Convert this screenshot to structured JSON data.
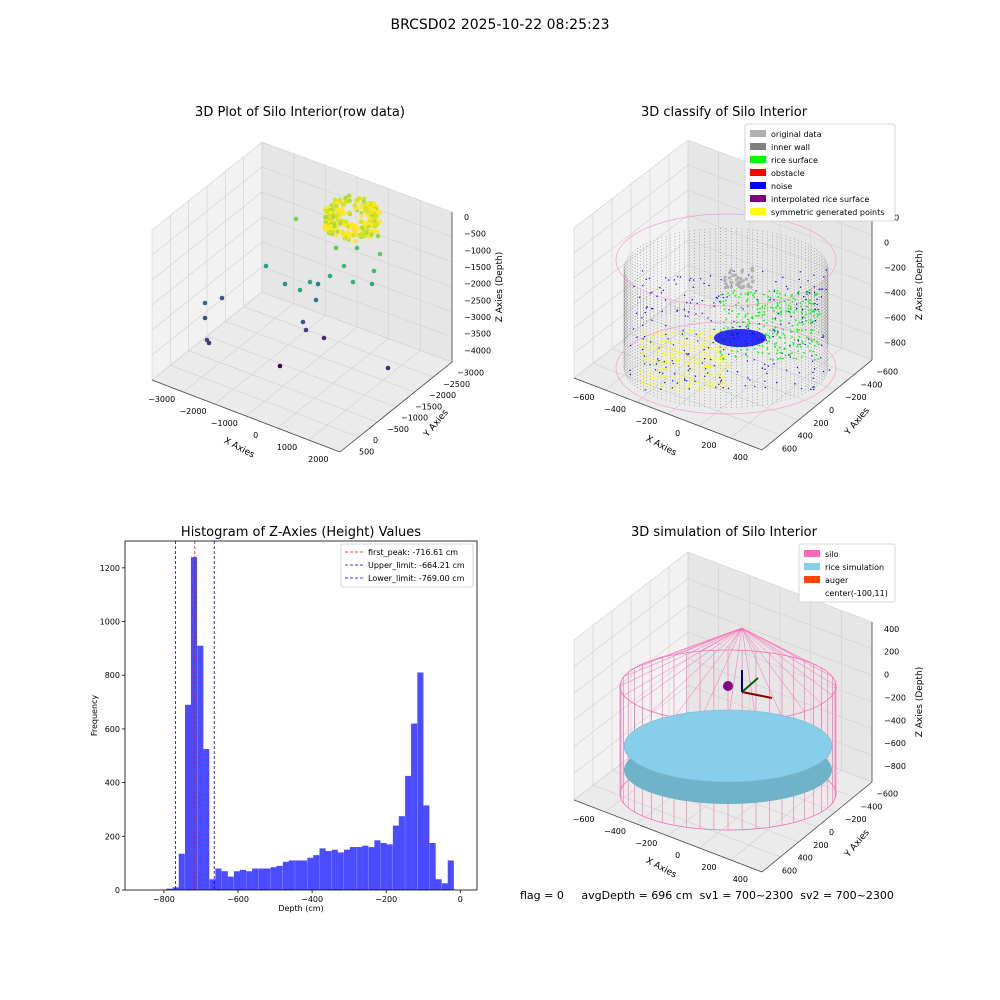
{
  "suptitle": "BRCSD02 2025-10-22 08:25:23",
  "footer": {
    "flag": "flag = 0",
    "avg_depth": "avgDepth = 696 cm",
    "sv1": "sv1 = 700~2300",
    "sv2": "sv2 = 700~2300"
  },
  "colors": {
    "hist_bar": "#4b4bff",
    "first_peak": "#ff0000",
    "limit_lines": "#0000cc",
    "silo": "#ff69b4",
    "rice_simulation": "#87ceeb",
    "auger": "#ff4500",
    "original_data": "#b0b0b0",
    "inner_wall": "#808080",
    "rice_surface": "#00ff00",
    "obstacle": "#ff0000",
    "noise": "#0000ff",
    "interpolated_rice_surface": "#800080",
    "symmetric_generated_points": "#ffff00"
  },
  "chart_data": [
    {
      "type": "scatter",
      "title": "3D Plot of Silo Interior(row data)",
      "xlabel": "X Axies",
      "ylabel": "Y Axies",
      "zlabel": "Z Axies (Depth)",
      "x_ticks": [
        -3000,
        -2000,
        -1000,
        0,
        1000,
        2000
      ],
      "y_ticks": [
        500,
        0,
        -500,
        -1000,
        -1500,
        -2000,
        -2500,
        -3000
      ],
      "z_ticks": [
        0,
        -500,
        -1000,
        -1500,
        -2000,
        -2500,
        -3000,
        -3500,
        -4000
      ],
      "colormap": "viridis",
      "grid": true
    },
    {
      "type": "scatter",
      "title": "3D classify of Silo Interior",
      "xlabel": "X Axies",
      "ylabel": "Y Axies",
      "zlabel": "Z Axies (Depth)",
      "x_ticks": [
        -600,
        -400,
        -200,
        0,
        200,
        400
      ],
      "y_ticks": [
        600,
        400,
        200,
        0,
        -200,
        -400,
        -600
      ],
      "z_ticks": [
        200,
        0,
        -200,
        -400,
        -600,
        -800
      ],
      "legend": [
        "original data",
        "inner wall",
        "rice surface",
        "obstacle",
        "noise",
        "interpolated rice surface",
        "symmetric generated points"
      ],
      "legend_position": "top-right",
      "grid": true
    },
    {
      "type": "bar",
      "title": "Histogram of Z-Axies (Height) Values",
      "xlabel": "Depth (cm)",
      "ylabel": "Frequency",
      "xlim": [
        -905,
        45
      ],
      "ylim": [
        0,
        1300
      ],
      "x_ticks": [
        -800,
        -600,
        -400,
        -200,
        0
      ],
      "y_ticks": [
        0,
        200,
        400,
        600,
        800,
        1000,
        1200
      ],
      "bin_width": 16.5,
      "bins": [
        [
          -793,
          5
        ],
        [
          -776,
          10
        ],
        [
          -760,
          135
        ],
        [
          -743,
          690
        ],
        [
          -727,
          1240
        ],
        [
          -710,
          910
        ],
        [
          -694,
          525
        ],
        [
          -677,
          40
        ],
        [
          -661,
          80
        ],
        [
          -644,
          70
        ],
        [
          -628,
          50
        ],
        [
          -611,
          70
        ],
        [
          -595,
          75
        ],
        [
          -578,
          70
        ],
        [
          -562,
          80
        ],
        [
          -545,
          80
        ],
        [
          -529,
          80
        ],
        [
          -512,
          85
        ],
        [
          -496,
          90
        ],
        [
          -479,
          105
        ],
        [
          -463,
          110
        ],
        [
          -446,
          110
        ],
        [
          -430,
          110
        ],
        [
          -413,
          120
        ],
        [
          -397,
          130
        ],
        [
          -380,
          155
        ],
        [
          -364,
          145
        ],
        [
          -347,
          150
        ],
        [
          -331,
          140
        ],
        [
          -314,
          150
        ],
        [
          -298,
          160
        ],
        [
          -281,
          160
        ],
        [
          -265,
          165
        ],
        [
          -248,
          160
        ],
        [
          -232,
          185
        ],
        [
          -215,
          175
        ],
        [
          -199,
          170
        ],
        [
          -182,
          240
        ],
        [
          -166,
          275
        ],
        [
          -149,
          425
        ],
        [
          -133,
          620
        ],
        [
          -116,
          810
        ],
        [
          -100,
          315
        ],
        [
          -83,
          175
        ],
        [
          -67,
          40
        ],
        [
          -50,
          25
        ],
        [
          -34,
          110
        ]
      ],
      "vlines": [
        {
          "name": "first_peak",
          "label": "first_peak: -716.61 cm",
          "x": -716.61,
          "style": "red-dashed"
        },
        {
          "name": "upper_limit",
          "label": "Upper_limit: -664.21 cm",
          "x": -664.21,
          "style": "blue-dashed"
        },
        {
          "name": "lower_limit",
          "label": "Lower_limit: -769.00 cm",
          "x": -769.0,
          "style": "blue-dashed"
        }
      ],
      "legend_position": "top-right",
      "grid": false
    },
    {
      "type": "scatter",
      "title": "3D simulation of Silo Interior",
      "xlabel": "X Axies",
      "ylabel": "Y Axies",
      "zlabel": "Z Axies (Depth)",
      "x_ticks": [
        -600,
        -400,
        -200,
        0,
        200,
        400
      ],
      "y_ticks": [
        600,
        400,
        200,
        0,
        -200,
        -400,
        -600
      ],
      "z_ticks": [
        400,
        200,
        0,
        -200,
        -400,
        -600,
        -800
      ],
      "legend": [
        "silo",
        "rice simulation",
        "auger",
        "center(-100,11)"
      ],
      "legend_position": "top-right",
      "grid": true
    }
  ]
}
